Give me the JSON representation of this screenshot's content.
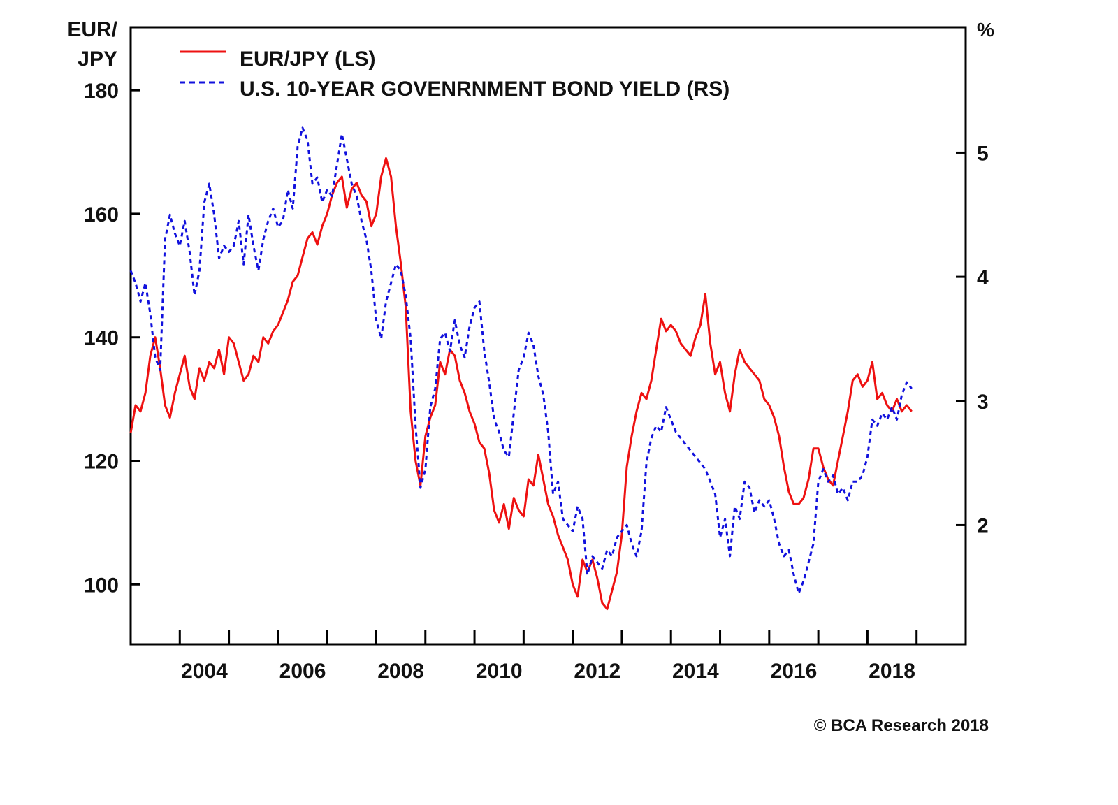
{
  "chart_data": {
    "type": "line",
    "title": "",
    "left_axis": {
      "label_line1": "EUR/",
      "label_line2": "JPY",
      "ylim": [
        90.3,
        190.2
      ],
      "ticks": [
        100,
        120,
        140,
        160,
        180
      ]
    },
    "right_axis": {
      "label": "%",
      "ylim": [
        1.04,
        6.01
      ],
      "ticks": [
        2,
        3,
        4,
        5
      ]
    },
    "x_axis": {
      "xlim": [
        2003.0,
        2020.0
      ],
      "tick_marks": [
        2004,
        2005,
        2006,
        2007,
        2008,
        2009,
        2010,
        2011,
        2012,
        2013,
        2014,
        2015,
        2016,
        2017,
        2018,
        2019
      ],
      "labels": [
        "2004",
        "2006",
        "2008",
        "2010",
        "2012",
        "2014",
        "2016",
        "2018"
      ]
    },
    "grid": false,
    "legend": {
      "placement": "top-left",
      "entries": [
        {
          "name": "EUR/JPY (LS)",
          "color": "#ee1111",
          "style": "solid"
        },
        {
          "name": "U.S. 10-YEAR GOVENRNMENT BOND YIELD (RS)",
          "color": "#1111dd",
          "style": "dashed"
        }
      ]
    },
    "series": [
      {
        "name": "EUR/JPY (LS)",
        "axis": "left",
        "color": "#ee1111",
        "x": [
          2003.0,
          2003.1,
          2003.2,
          2003.3,
          2003.4,
          2003.5,
          2003.6,
          2003.7,
          2003.8,
          2003.9,
          2004.0,
          2004.1,
          2004.2,
          2004.3,
          2004.4,
          2004.5,
          2004.6,
          2004.7,
          2004.8,
          2004.9,
          2005.0,
          2005.1,
          2005.2,
          2005.3,
          2005.4,
          2005.5,
          2005.6,
          2005.7,
          2005.8,
          2005.9,
          2006.0,
          2006.1,
          2006.2,
          2006.3,
          2006.4,
          2006.5,
          2006.6,
          2006.7,
          2006.8,
          2006.9,
          2007.0,
          2007.1,
          2007.2,
          2007.3,
          2007.4,
          2007.5,
          2007.6,
          2007.7,
          2007.8,
          2007.9,
          2008.0,
          2008.1,
          2008.2,
          2008.3,
          2008.4,
          2008.5,
          2008.6,
          2008.7,
          2008.8,
          2008.9,
          2009.0,
          2009.1,
          2009.2,
          2009.3,
          2009.4,
          2009.5,
          2009.6,
          2009.7,
          2009.8,
          2009.9,
          2010.0,
          2010.1,
          2010.2,
          2010.3,
          2010.4,
          2010.5,
          2010.6,
          2010.7,
          2010.8,
          2010.9,
          2011.0,
          2011.1,
          2011.2,
          2011.3,
          2011.4,
          2011.5,
          2011.6,
          2011.7,
          2011.8,
          2011.9,
          2012.0,
          2012.1,
          2012.2,
          2012.3,
          2012.4,
          2012.5,
          2012.6,
          2012.7,
          2012.8,
          2012.9,
          2013.0,
          2013.1,
          2013.2,
          2013.3,
          2013.4,
          2013.5,
          2013.6,
          2013.7,
          2013.8,
          2013.9,
          2014.0,
          2014.1,
          2014.2,
          2014.3,
          2014.4,
          2014.5,
          2014.6,
          2014.7,
          2014.8,
          2014.9,
          2015.0,
          2015.1,
          2015.2,
          2015.3,
          2015.4,
          2015.5,
          2015.6,
          2015.7,
          2015.8,
          2015.9,
          2016.0,
          2016.1,
          2016.2,
          2016.3,
          2016.4,
          2016.5,
          2016.6,
          2016.7,
          2016.8,
          2016.9,
          2017.0,
          2017.1,
          2017.2,
          2017.3,
          2017.4,
          2017.5,
          2017.6,
          2017.7,
          2017.8,
          2017.9,
          2018.0,
          2018.1,
          2018.2,
          2018.3,
          2018.4,
          2018.5,
          2018.6,
          2018.7,
          2018.8,
          2018.9
        ],
        "values": [
          124.5,
          129,
          128,
          131,
          137,
          140,
          135,
          129,
          127,
          131,
          134,
          137,
          132,
          130,
          135,
          133,
          136,
          135,
          138,
          134,
          140,
          139,
          136,
          133,
          134,
          137,
          136,
          140,
          139,
          141,
          142,
          144,
          146,
          149,
          150,
          153,
          156,
          157,
          155,
          158,
          160,
          163,
          165,
          166,
          161,
          164,
          165,
          163,
          162,
          158,
          160,
          166,
          169,
          166,
          158,
          152,
          145,
          128,
          120,
          116,
          124,
          127,
          129,
          136,
          134,
          138,
          137,
          133,
          131,
          128,
          126,
          123,
          122,
          118,
          112,
          110,
          113,
          109,
          114,
          112,
          111,
          117,
          116,
          121,
          117,
          113,
          111,
          108,
          106,
          104,
          100,
          98,
          104,
          102,
          104,
          101,
          97,
          96,
          99,
          102,
          108,
          119,
          124,
          128,
          131,
          130,
          133,
          138,
          143,
          141,
          142,
          141,
          139,
          138,
          137,
          140,
          142,
          147,
          139,
          134,
          136,
          131,
          128,
          134,
          138,
          136,
          135,
          134,
          133,
          130,
          129,
          127,
          124,
          119,
          115,
          113,
          113,
          114,
          117,
          122,
          122,
          119,
          117,
          116,
          120,
          124,
          128,
          133,
          134,
          132,
          133,
          136,
          130,
          131,
          129,
          128,
          130,
          128,
          129,
          128
        ]
      },
      {
        "name": "U.S. 10-YEAR GOVENRNMENT BOND YIELD (RS)",
        "axis": "right",
        "color": "#1111dd",
        "x": [
          2003.0,
          2003.1,
          2003.2,
          2003.3,
          2003.4,
          2003.5,
          2003.6,
          2003.7,
          2003.8,
          2003.9,
          2004.0,
          2004.1,
          2004.2,
          2004.3,
          2004.4,
          2004.5,
          2004.6,
          2004.7,
          2004.8,
          2004.9,
          2005.0,
          2005.1,
          2005.2,
          2005.3,
          2005.4,
          2005.5,
          2005.6,
          2005.7,
          2005.8,
          2005.9,
          2006.0,
          2006.1,
          2006.2,
          2006.3,
          2006.4,
          2006.5,
          2006.6,
          2006.7,
          2006.8,
          2006.9,
          2007.0,
          2007.1,
          2007.2,
          2007.3,
          2007.4,
          2007.5,
          2007.6,
          2007.7,
          2007.8,
          2007.9,
          2008.0,
          2008.1,
          2008.2,
          2008.3,
          2008.4,
          2008.5,
          2008.6,
          2008.7,
          2008.8,
          2008.9,
          2009.0,
          2009.1,
          2009.2,
          2009.3,
          2009.4,
          2009.5,
          2009.6,
          2009.7,
          2009.8,
          2009.9,
          2010.0,
          2010.1,
          2010.2,
          2010.3,
          2010.4,
          2010.5,
          2010.6,
          2010.7,
          2010.8,
          2010.9,
          2011.0,
          2011.1,
          2011.2,
          2011.3,
          2011.4,
          2011.5,
          2011.6,
          2011.7,
          2011.8,
          2011.9,
          2012.0,
          2012.1,
          2012.2,
          2012.3,
          2012.4,
          2012.5,
          2012.6,
          2012.7,
          2012.8,
          2012.9,
          2013.0,
          2013.1,
          2013.2,
          2013.3,
          2013.4,
          2013.5,
          2013.6,
          2013.7,
          2013.8,
          2013.9,
          2014.0,
          2014.1,
          2014.2,
          2014.3,
          2014.4,
          2014.5,
          2014.6,
          2014.7,
          2014.8,
          2014.9,
          2015.0,
          2015.1,
          2015.2,
          2015.3,
          2015.4,
          2015.5,
          2015.6,
          2015.7,
          2015.8,
          2015.9,
          2016.0,
          2016.1,
          2016.2,
          2016.3,
          2016.4,
          2016.5,
          2016.6,
          2016.7,
          2016.8,
          2016.9,
          2017.0,
          2017.1,
          2017.2,
          2017.3,
          2017.4,
          2017.5,
          2017.6,
          2017.7,
          2017.8,
          2017.9,
          2018.0,
          2018.1,
          2018.2,
          2018.3,
          2018.4,
          2018.5,
          2018.6,
          2018.7,
          2018.8,
          2018.9
        ],
        "values": [
          4.05,
          3.95,
          3.8,
          3.95,
          3.7,
          3.35,
          3.25,
          4.3,
          4.5,
          4.35,
          4.25,
          4.45,
          4.2,
          3.85,
          4.05,
          4.6,
          4.75,
          4.5,
          4.15,
          4.25,
          4.2,
          4.25,
          4.45,
          4.1,
          4.5,
          4.25,
          4.05,
          4.3,
          4.45,
          4.55,
          4.4,
          4.45,
          4.7,
          4.55,
          5.05,
          5.2,
          5.1,
          4.75,
          4.8,
          4.6,
          4.7,
          4.65,
          4.9,
          5.15,
          4.95,
          4.75,
          4.65,
          4.45,
          4.3,
          4.05,
          3.65,
          3.5,
          3.8,
          3.95,
          4.1,
          4.05,
          3.85,
          3.5,
          2.8,
          2.3,
          2.45,
          2.95,
          3.1,
          3.5,
          3.55,
          3.4,
          3.65,
          3.45,
          3.35,
          3.6,
          3.75,
          3.8,
          3.4,
          3.15,
          2.85,
          2.75,
          2.6,
          2.55,
          2.9,
          3.25,
          3.35,
          3.55,
          3.45,
          3.2,
          3.05,
          2.75,
          2.25,
          2.35,
          2.05,
          2.0,
          1.95,
          2.15,
          2.05,
          1.6,
          1.75,
          1.7,
          1.65,
          1.8,
          1.75,
          1.9,
          1.95,
          2.0,
          1.85,
          1.75,
          1.95,
          2.5,
          2.7,
          2.8,
          2.75,
          2.95,
          2.85,
          2.75,
          2.7,
          2.65,
          2.6,
          2.55,
          2.5,
          2.45,
          2.35,
          2.25,
          1.9,
          2.05,
          1.75,
          2.15,
          2.05,
          2.35,
          2.3,
          2.1,
          2.2,
          2.15,
          2.2,
          2.05,
          1.85,
          1.75,
          1.8,
          1.6,
          1.45,
          1.55,
          1.7,
          1.85,
          2.35,
          2.45,
          2.35,
          2.4,
          2.25,
          2.3,
          2.2,
          2.35,
          2.35,
          2.4,
          2.55,
          2.85,
          2.8,
          2.9,
          2.85,
          2.95,
          2.85,
          3.05,
          3.15,
          3.1
        ]
      }
    ]
  },
  "footer": {
    "copyright": "© BCA Research 2018"
  }
}
